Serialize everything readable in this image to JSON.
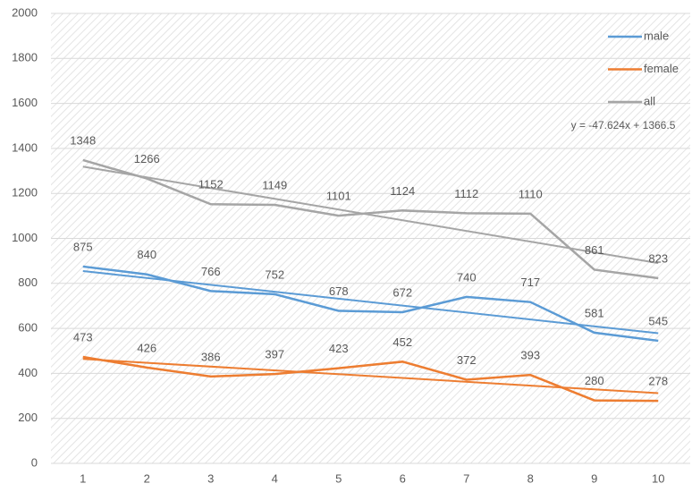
{
  "chart_data": {
    "type": "line",
    "categories": [
      "1",
      "2",
      "3",
      "4",
      "5",
      "6",
      "7",
      "8",
      "9",
      "10"
    ],
    "series": [
      {
        "name": "male",
        "color": "#5b9bd5",
        "values": [
          875,
          840,
          766,
          752,
          678,
          672,
          740,
          717,
          581,
          545
        ]
      },
      {
        "name": "female",
        "color": "#ed7d31",
        "values": [
          473,
          426,
          386,
          397,
          423,
          452,
          372,
          393,
          280,
          278
        ]
      },
      {
        "name": "all",
        "color": "#a5a5a5",
        "values": [
          1348,
          1266,
          1152,
          1149,
          1101,
          1124,
          1112,
          1110,
          861,
          823
        ]
      }
    ],
    "ylim": [
      0,
      2000
    ],
    "yticks": [
      0,
      200,
      400,
      600,
      800,
      1000,
      1200,
      1400,
      1600,
      1800,
      2000
    ],
    "grid": true,
    "legend": "upper right",
    "data_labels": true,
    "trendlines": true,
    "annotations": [
      "y = -47.624x + 1366.5"
    ]
  }
}
